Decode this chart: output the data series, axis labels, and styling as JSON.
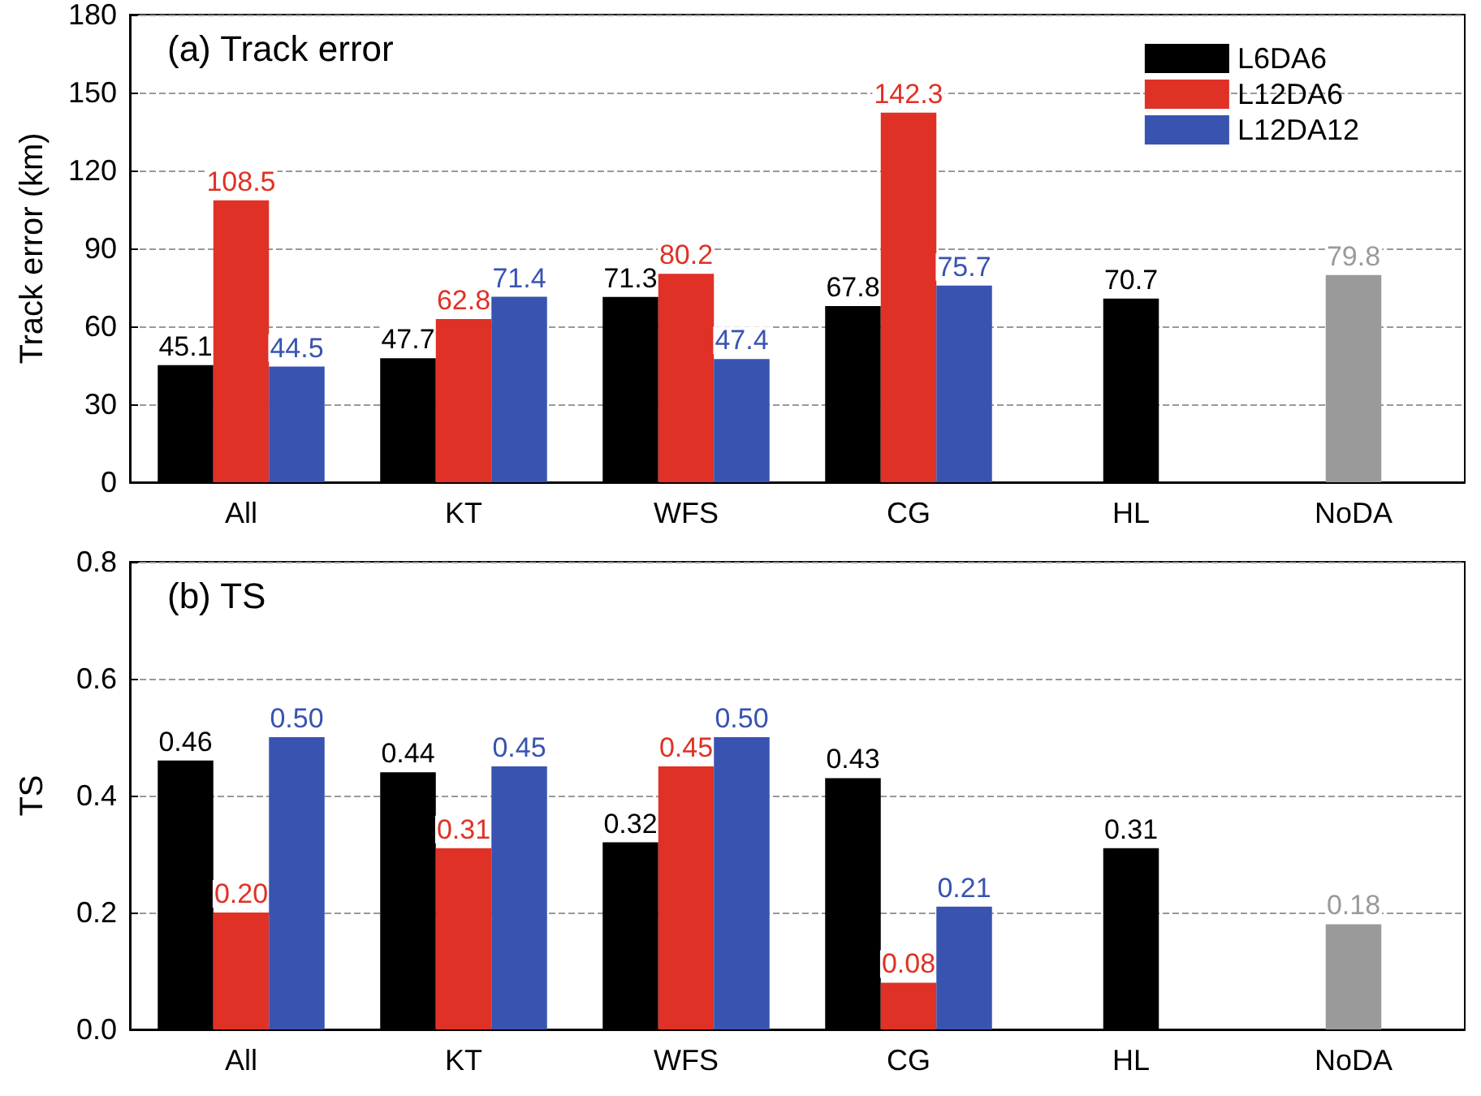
{
  "chart_data": [
    {
      "type": "bar",
      "title": "(a) Track error",
      "ylabel": "Track error (km)",
      "categories": [
        "All",
        "KT",
        "WFS",
        "CG",
        "HL",
        "NoDA"
      ],
      "series": [
        {
          "name": "L6DA6",
          "color": "#000000",
          "values": [
            45.1,
            47.7,
            71.3,
            67.8,
            70.7,
            null
          ]
        },
        {
          "name": "L12DA6",
          "color": "#e03126",
          "values": [
            108.5,
            62.8,
            80.2,
            142.3,
            null,
            null
          ]
        },
        {
          "name": "L12DA12",
          "color": "#3953b0",
          "values": [
            44.5,
            71.4,
            47.4,
            75.7,
            null,
            null
          ]
        },
        {
          "color": "#9a9a9a",
          "values": [
            null,
            null,
            null,
            null,
            null,
            79.8
          ]
        }
      ],
      "ylim": [
        0,
        180
      ],
      "yticks": [
        0,
        30,
        60,
        90,
        120,
        150,
        180
      ],
      "grid": "y",
      "legend": "top right",
      "data_labels": true
    },
    {
      "type": "bar",
      "title": "(b) TS",
      "ylabel": "TS",
      "categories": [
        "All",
        "KT",
        "WFS",
        "CG",
        "HL",
        "NoDA"
      ],
      "series": [
        {
          "color": "#000000",
          "values": [
            0.46,
            0.44,
            0.32,
            0.43,
            0.31,
            null
          ],
          "value_labels": [
            "0.46",
            "0.44",
            "0.32",
            "0.43",
            "0.31",
            null
          ]
        },
        {
          "color": "#e03126",
          "values": [
            0.2,
            0.31,
            0.45,
            0.08,
            null,
            null
          ],
          "value_labels": [
            "0.20",
            "0.31",
            "0.45",
            "0.08",
            null,
            null
          ]
        },
        {
          "color": "#3953b0",
          "values": [
            0.5,
            0.45,
            0.5,
            0.21,
            null,
            null
          ],
          "value_labels": [
            "0.50",
            "0.45",
            "0.50",
            "0.21",
            null,
            null
          ]
        },
        {
          "color": "#9a9a9a",
          "values": [
            null,
            null,
            null,
            null,
            null,
            0.18
          ],
          "value_labels": [
            null,
            null,
            null,
            null,
            null,
            "0.18"
          ]
        }
      ],
      "ylim": [
        0,
        0.8
      ],
      "yticks": [
        {
          "value": 0,
          "label": "0.0"
        },
        {
          "value": 0.2,
          "label": "0.2"
        },
        {
          "value": 0.4,
          "label": "0.4"
        },
        {
          "value": 0.6,
          "label": "0.6"
        },
        {
          "value": 0.8,
          "label": "0.8"
        }
      ],
      "grid": "y"
    }
  ]
}
